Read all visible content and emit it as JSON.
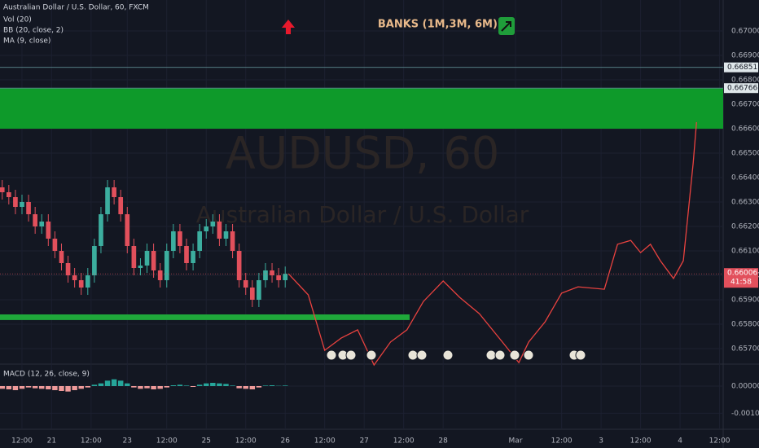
{
  "chart_data": {
    "type": "candlestick",
    "symbol_title": "Australian Dollar / U.S. Dollar, 60, FXCM",
    "indicators": [
      "Vol (20)",
      "BB (20, close, 2)",
      "MA (9, close)"
    ],
    "watermark": "AUDUSD, 60",
    "watermark_subtitle": "Australian Dollar / U.S. Dollar",
    "annotation": "BANKS (1M,3M, 6M):",
    "x": [
      -6,
      -4,
      -2,
      0,
      2,
      4,
      6,
      8,
      10,
      12,
      14,
      16,
      18,
      20,
      22,
      24,
      26,
      28,
      30,
      32,
      34,
      36,
      38,
      40,
      42,
      44,
      46,
      48,
      50,
      52,
      54,
      56,
      58,
      60,
      62,
      64,
      66,
      68,
      70,
      72,
      74,
      76,
      78,
      80
    ],
    "open": [
      0.6636,
      0.6634,
      0.6632,
      0.6628,
      0.663,
      0.6625,
      0.662,
      0.6622,
      0.6615,
      0.661,
      0.6605,
      0.66,
      0.6598,
      0.6595,
      0.66,
      0.6612,
      0.6625,
      0.6636,
      0.6632,
      0.6625,
      0.6612,
      0.6603,
      0.6604,
      0.661,
      0.6602,
      0.6598,
      0.661,
      0.6618,
      0.6612,
      0.6605,
      0.661,
      0.6618,
      0.662,
      0.6622,
      0.6615,
      0.6618,
      0.661,
      0.6598,
      0.6595,
      0.659,
      0.6598,
      0.6602,
      0.66,
      0.6598
    ],
    "high": [
      0.6639,
      0.6637,
      0.6635,
      0.6633,
      0.6633,
      0.6628,
      0.6625,
      0.6625,
      0.6618,
      0.6613,
      0.6608,
      0.6603,
      0.6601,
      0.6603,
      0.6615,
      0.6628,
      0.6639,
      0.6639,
      0.6635,
      0.6628,
      0.6615,
      0.6607,
      0.6613,
      0.6613,
      0.6605,
      0.6613,
      0.6621,
      0.6621,
      0.6615,
      0.6613,
      0.6621,
      0.6623,
      0.6625,
      0.6625,
      0.6621,
      0.6621,
      0.6613,
      0.6601,
      0.6598,
      0.6601,
      0.6605,
      0.6605,
      0.6603,
      0.66036
    ],
    "low": [
      0.6631,
      0.6629,
      0.6625,
      0.6625,
      0.6622,
      0.6617,
      0.6617,
      0.6612,
      0.6607,
      0.6602,
      0.6597,
      0.6595,
      0.6592,
      0.6592,
      0.6597,
      0.6609,
      0.6622,
      0.6629,
      0.6622,
      0.6609,
      0.66,
      0.66,
      0.6601,
      0.6599,
      0.6595,
      0.6595,
      0.6607,
      0.6609,
      0.6602,
      0.6602,
      0.6607,
      0.6615,
      0.6617,
      0.6612,
      0.6612,
      0.6607,
      0.6595,
      0.6592,
      0.6587,
      0.6587,
      0.6595,
      0.6597,
      0.6595,
      0.6595
    ],
    "close": [
      0.6634,
      0.6632,
      0.6628,
      0.663,
      0.6625,
      0.662,
      0.6622,
      0.6615,
      0.661,
      0.6605,
      0.66,
      0.6598,
      0.6595,
      0.66,
      0.6612,
      0.6625,
      0.6636,
      0.6632,
      0.6625,
      0.6612,
      0.6603,
      0.6604,
      0.661,
      0.6602,
      0.6598,
      0.661,
      0.6618,
      0.6612,
      0.6605,
      0.661,
      0.6618,
      0.662,
      0.6622,
      0.6615,
      0.6618,
      0.661,
      0.6598,
      0.6595,
      0.659,
      0.6598,
      0.6602,
      0.66,
      0.6598,
      0.66006
    ],
    "up_color": "#3cae9f",
    "down_color": "#e2505c",
    "projection": {
      "color": "#e8423f",
      "x": [
        81,
        87,
        92,
        97,
        102,
        107,
        112,
        117,
        122,
        128,
        133,
        139,
        146,
        151,
        154,
        159,
        164,
        169,
        177,
        181,
        185,
        188,
        191,
        194,
        198,
        201,
        204,
        205
      ],
      "y": [
        0.66006,
        0.6592,
        0.65693,
        0.65743,
        0.65777,
        0.65633,
        0.65727,
        0.65777,
        0.65893,
        0.65977,
        0.6591,
        0.65843,
        0.65727,
        0.65643,
        0.65727,
        0.6581,
        0.65927,
        0.65953,
        0.65943,
        0.66127,
        0.66143,
        0.66093,
        0.66127,
        0.6606,
        0.65987,
        0.6606,
        0.6646,
        0.66627
      ]
    },
    "zones": [
      {
        "color": "#0e9a2a",
        "ylim": [
          0.666,
          0.66766
        ],
        "xlim": [
          -6.68,
          213.1
        ]
      },
      {
        "color": "#1fa83a",
        "ylim": [
          0.65817,
          0.6584
        ],
        "xlim": [
          -6.68,
          117.8
        ]
      }
    ],
    "levels": [
      {
        "value": 0.66851,
        "label": "0.66851"
      },
      {
        "value": 0.66766,
        "label": "0.66766"
      }
    ],
    "last_price": {
      "value": 0.66006,
      "label": "0.66006"
    },
    "countdown": "41:58",
    "xlim": [
      -6.68,
      213.1
    ],
    "ylim": [
      0.656433,
      0.671267
    ],
    "xticks": [
      {
        "value": 0,
        "label": "12:00"
      },
      {
        "value": 9,
        "label": "21"
      },
      {
        "value": 21,
        "label": "12:00"
      },
      {
        "value": 32,
        "label": "23"
      },
      {
        "value": 44,
        "label": "12:00"
      },
      {
        "value": 56,
        "label": "25"
      },
      {
        "value": 68,
        "label": "12:00"
      },
      {
        "value": 80,
        "label": "26"
      },
      {
        "value": 92,
        "label": "12:00"
      },
      {
        "value": 104,
        "label": "27"
      },
      {
        "value": 116,
        "label": "12:00"
      },
      {
        "value": 128,
        "label": "28"
      },
      {
        "value": 150,
        "label": "Mar"
      },
      {
        "value": 164,
        "label": "12:00"
      },
      {
        "value": 176,
        "label": "3"
      },
      {
        "value": 188,
        "label": "12:00"
      },
      {
        "value": 200,
        "label": "4"
      },
      {
        "value": 212,
        "label": "12:00"
      }
    ],
    "yticks": [
      {
        "value": 0.657,
        "label": "0.65700"
      },
      {
        "value": 0.658,
        "label": "0.65800"
      },
      {
        "value": 0.659,
        "label": "0.65900"
      },
      {
        "value": 0.66,
        "label": "0.66000"
      },
      {
        "value": 0.661,
        "label": "0.66100"
      },
      {
        "value": 0.662,
        "label": "0.66200"
      },
      {
        "value": 0.663,
        "label": "0.66300"
      },
      {
        "value": 0.664,
        "label": "0.66400"
      },
      {
        "value": 0.665,
        "label": "0.66500"
      },
      {
        "value": 0.666,
        "label": "0.66600"
      },
      {
        "value": 0.667,
        "label": "0.66700"
      },
      {
        "value": 0.668,
        "label": "0.66800"
      },
      {
        "value": 0.669,
        "label": "0.66900"
      },
      {
        "value": 0.67,
        "label": "0.67000"
      }
    ],
    "macd": {
      "title": "MACD (12, 26, close, 9)",
      "ylim": [
        -0.00156,
        0.00078
      ],
      "yticks": [
        {
          "value": 0,
          "label": "0.00000"
        },
        {
          "value": -0.001,
          "label": "-0.00100"
        }
      ],
      "histogram": [
        -0.0001,
        -0.00012,
        -0.00015,
        -0.0001,
        -5e-05,
        -8e-05,
        -0.0001,
        -0.00012,
        -0.00015,
        -0.00018,
        -0.0002,
        -0.00015,
        -0.0001,
        -5e-05,
        5e-05,
        0.0001,
        0.0002,
        0.00025,
        0.0002,
        0.0001,
        -5e-05,
        -0.0001,
        -8e-05,
        -0.00012,
        -0.0001,
        -5e-05,
        3e-05,
        5e-05,
        2e-05,
        -3e-05,
        5e-05,
        0.0001,
        0.00012,
        0.0001,
        8e-05,
        2e-05,
        -8e-05,
        -0.0001,
        -0.00012,
        -5e-05,
        2e-05,
        3e-05,
        1e-05,
        2e-05
      ]
    }
  }
}
